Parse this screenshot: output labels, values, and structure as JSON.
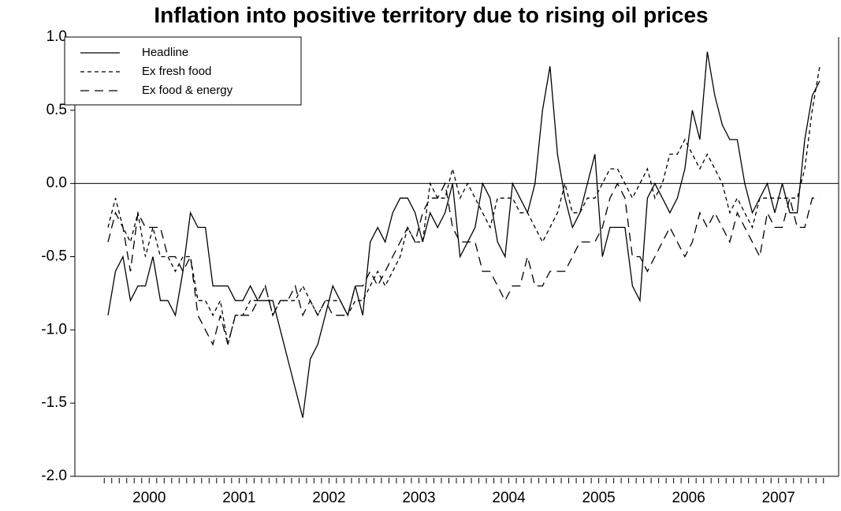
{
  "chart_data": {
    "type": "line",
    "title": "Inflation into positive territory due to rising oil prices",
    "categories": [
      "2000",
      null,
      null,
      null,
      null,
      null,
      null,
      null,
      null,
      null,
      null,
      null,
      "2001",
      null,
      null,
      null,
      null,
      null,
      null,
      null,
      null,
      null,
      null,
      null,
      "2002",
      null,
      null,
      null,
      null,
      null,
      null,
      null,
      null,
      null,
      null,
      null,
      "2003",
      null,
      null,
      null,
      null,
      null,
      null,
      null,
      null,
      null,
      null,
      null,
      "2004",
      null,
      null,
      null,
      null,
      null,
      null,
      null,
      null,
      null,
      null,
      null,
      "2005",
      null,
      null,
      null,
      null,
      null,
      null,
      null,
      null,
      null,
      null,
      null,
      "2006",
      null,
      null,
      null,
      null,
      null,
      null,
      null,
      null,
      null,
      null,
      null,
      "2007",
      null,
      null,
      null,
      null,
      null,
      null,
      null,
      null,
      null,
      null,
      null
    ],
    "series": [
      {
        "name": "Headline",
        "color": "#000000",
        "line_style": "solid",
        "values": [
          -0.9,
          -0.6,
          -0.5,
          -0.8,
          -0.7,
          -0.7,
          -0.5,
          -0.8,
          -0.8,
          -0.9,
          -0.6,
          -0.2,
          -0.3,
          -0.3,
          -0.7,
          -0.7,
          -0.7,
          -0.8,
          -0.8,
          -0.7,
          -0.8,
          -0.8,
          -0.8,
          -1.0,
          -1.2,
          -1.4,
          -1.6,
          -1.2,
          -1.1,
          -0.9,
          -0.7,
          -0.8,
          -0.9,
          -0.7,
          -0.9,
          -0.4,
          -0.3,
          -0.4,
          -0.2,
          -0.1,
          -0.1,
          -0.2,
          -0.4,
          -0.2,
          -0.3,
          -0.2,
          0.0,
          -0.5,
          -0.4,
          -0.3,
          0.0,
          -0.1,
          -0.4,
          -0.5,
          0.0,
          -0.1,
          -0.2,
          0.0,
          0.5,
          0.8,
          0.2,
          -0.1,
          -0.3,
          -0.2,
          0.0,
          0.2,
          -0.5,
          -0.3,
          -0.3,
          -0.3,
          -0.7,
          -0.8,
          -0.1,
          0.0,
          -0.1,
          -0.2,
          -0.1,
          0.1,
          0.5,
          0.3,
          0.9,
          0.6,
          0.4,
          0.3,
          0.3,
          0.0,
          -0.2,
          -0.1,
          0.0,
          -0.2,
          0.0,
          -0.2,
          -0.2,
          0.3,
          0.6,
          0.7
        ]
      },
      {
        "name": "Ex fresh food",
        "color": "#000000",
        "line_style": "dashed",
        "values": [
          -0.3,
          -0.1,
          -0.3,
          -0.4,
          -0.2,
          -0.5,
          -0.3,
          -0.5,
          -0.5,
          -0.6,
          -0.5,
          -0.5,
          -0.8,
          -0.8,
          -0.9,
          -0.8,
          -1.1,
          -0.9,
          -0.9,
          -0.8,
          -0.8,
          -0.7,
          -0.9,
          -0.8,
          -0.8,
          -0.8,
          -0.7,
          -0.8,
          -0.9,
          -0.8,
          -0.8,
          -0.8,
          -0.9,
          -0.8,
          -0.8,
          -0.7,
          -0.6,
          -0.7,
          -0.6,
          -0.5,
          -0.3,
          -0.4,
          -0.4,
          0.0,
          -0.1,
          -0.1,
          0.1,
          -0.1,
          0.0,
          -0.1,
          -0.2,
          -0.3,
          -0.1,
          -0.1,
          -0.1,
          -0.2,
          -0.2,
          -0.3,
          -0.4,
          -0.3,
          -0.2,
          0.0,
          -0.2,
          -0.2,
          -0.1,
          -0.1,
          0.0,
          0.1,
          0.1,
          0.0,
          -0.1,
          0.0,
          0.1,
          -0.1,
          0.0,
          0.2,
          0.2,
          0.3,
          0.2,
          0.1,
          0.2,
          0.1,
          0.0,
          -0.2,
          -0.1,
          -0.2,
          -0.3,
          -0.1,
          -0.1,
          -0.1,
          -0.1,
          -0.1,
          -0.1,
          0.1,
          0.5,
          0.8
        ]
      },
      {
        "name": "Ex food & energy",
        "color": "#000000",
        "line_style": "longdash",
        "values": [
          -0.4,
          -0.2,
          -0.3,
          -0.6,
          -0.2,
          -0.3,
          -0.3,
          -0.3,
          -0.5,
          -0.5,
          -0.6,
          -0.5,
          -0.9,
          -1.0,
          -1.1,
          -0.9,
          -1.1,
          -0.9,
          -0.9,
          -0.9,
          -0.8,
          -0.7,
          -0.9,
          -0.8,
          -0.8,
          -0.7,
          -0.9,
          -0.8,
          -0.9,
          -0.8,
          -0.9,
          -0.9,
          -0.9,
          -0.7,
          -0.7,
          -0.6,
          -0.7,
          -0.6,
          -0.5,
          -0.4,
          -0.3,
          -0.4,
          -0.2,
          -0.1,
          -0.1,
          0.0,
          -0.3,
          -0.4,
          -0.4,
          -0.4,
          -0.6,
          -0.6,
          -0.7,
          -0.8,
          -0.7,
          -0.7,
          -0.5,
          -0.7,
          -0.7,
          -0.6,
          -0.6,
          -0.6,
          -0.5,
          -0.4,
          -0.4,
          -0.4,
          -0.3,
          -0.1,
          0.0,
          -0.1,
          -0.5,
          -0.5,
          -0.6,
          -0.5,
          -0.4,
          -0.3,
          -0.4,
          -0.5,
          -0.4,
          -0.2,
          -0.3,
          -0.2,
          -0.3,
          -0.4,
          -0.2,
          -0.3,
          -0.4,
          -0.5,
          -0.2,
          -0.3,
          -0.3,
          -0.1,
          -0.3,
          -0.3,
          -0.1,
          -0.1
        ]
      }
    ],
    "ylim": [
      -2.0,
      1.0
    ],
    "yticks": [
      {
        "value": 1.0,
        "label": "1.0"
      },
      0.5,
      {
        "value": 0.0,
        "label": "0.0"
      },
      -0.5,
      {
        "value": -1.0,
        "label": "-1.0"
      },
      -1.5,
      {
        "value": -2.0,
        "label": "-2.0"
      }
    ],
    "zero_line": true,
    "legend": "top-left"
  }
}
